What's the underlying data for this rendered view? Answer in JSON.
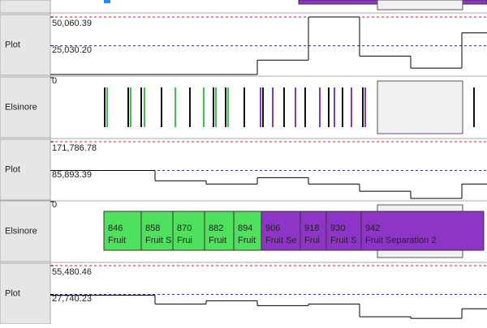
{
  "tracks": [
    {
      "label": "Plot",
      "ticks": [
        {
          "value": 50060.39,
          "label": "50,060.39"
        },
        {
          "value": 25030.2,
          "label": "25,030.20"
        }
      ],
      "steps": [
        0,
        0,
        0,
        12500,
        50060.39,
        16000,
        5560,
        36200
      ]
    },
    {
      "label": "Elsinore",
      "zero": 0
    },
    {
      "label": "Plot",
      "ticks": [
        {
          "value": 171786.78,
          "label": "171,786.78"
        },
        {
          "value": 85893.39,
          "label": "85,893.39"
        }
      ],
      "steps": [
        85893.39,
        54900,
        45300,
        64400,
        45300,
        23900,
        2400,
        45300
      ]
    },
    {
      "label": "Elsinore",
      "zero": 0,
      "blocks": [
        {
          "number": 846,
          "name": "Fruit"
        },
        {
          "number": 858,
          "name": "Fruit S"
        },
        {
          "number": 870,
          "name": "Frui"
        },
        {
          "number": 882,
          "name": "Fruit"
        },
        {
          "number": 894,
          "name": "Fruit"
        },
        {
          "number": 906,
          "name": "Fruit Se"
        },
        {
          "number": 918,
          "name": "Frui"
        },
        {
          "number": 930,
          "name": "Fruit S"
        },
        {
          "number": 942,
          "name": "Fruit Separation 2"
        }
      ]
    },
    {
      "label": "Plot",
      "ticks": [
        {
          "value": 55480.46,
          "label": "55,480.46"
        },
        {
          "value": 27740.23,
          "label": "27,740.23"
        }
      ],
      "steps": [
        27000,
        18500,
        21600,
        16900,
        18500,
        6200,
        4600,
        13900
      ]
    }
  ]
}
